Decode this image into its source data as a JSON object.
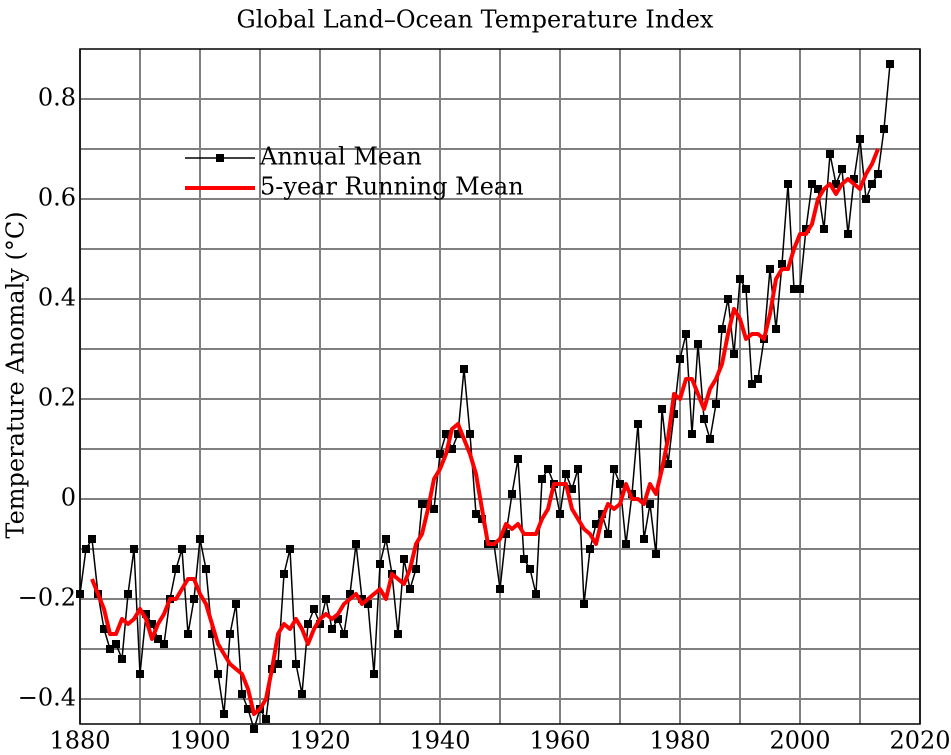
{
  "chart_data": {
    "type": "line",
    "title": "Global Land–Ocean Temperature Index",
    "ylabel": "Temperature Anomaly (°C)",
    "xlim": [
      1880,
      2020
    ],
    "xticks": [
      1880,
      1900,
      1920,
      1940,
      1960,
      1980,
      2000,
      2020
    ],
    "xminor": [
      1890,
      1910,
      1930,
      1950,
      1970,
      1990,
      2010
    ],
    "ylim": [
      -0.45,
      0.9
    ],
    "yticks": [
      {
        "value": -0.4,
        "label": "−0.4"
      },
      {
        "value": -0.2,
        "label": "−0.2"
      },
      0,
      0.2,
      0.4,
      0.6,
      0.8
    ],
    "yminor": [
      -0.3,
      -0.1,
      0.1,
      0.3,
      0.5,
      0.7
    ],
    "grid": true,
    "legend": "upper left",
    "series": [
      {
        "name": "Annual Mean",
        "color": "#000000",
        "marker": "square",
        "x": [
          1880,
          1881,
          1882,
          1883,
          1884,
          1885,
          1886,
          1887,
          1888,
          1889,
          1890,
          1891,
          1892,
          1893,
          1894,
          1895,
          1896,
          1897,
          1898,
          1899,
          1900,
          1901,
          1902,
          1903,
          1904,
          1905,
          1906,
          1907,
          1908,
          1909,
          1910,
          1911,
          1912,
          1913,
          1914,
          1915,
          1916,
          1917,
          1918,
          1919,
          1920,
          1921,
          1922,
          1923,
          1924,
          1925,
          1926,
          1927,
          1928,
          1929,
          1930,
          1931,
          1932,
          1933,
          1934,
          1935,
          1936,
          1937,
          1938,
          1939,
          1940,
          1941,
          1942,
          1943,
          1944,
          1945,
          1946,
          1947,
          1948,
          1949,
          1950,
          1951,
          1952,
          1953,
          1954,
          1955,
          1956,
          1957,
          1958,
          1959,
          1960,
          1961,
          1962,
          1963,
          1964,
          1965,
          1966,
          1967,
          1968,
          1969,
          1970,
          1971,
          1972,
          1973,
          1974,
          1975,
          1976,
          1977,
          1978,
          1979,
          1980,
          1981,
          1982,
          1983,
          1984,
          1985,
          1986,
          1987,
          1988,
          1989,
          1990,
          1991,
          1992,
          1993,
          1994,
          1995,
          1996,
          1997,
          1998,
          1999,
          2000,
          2001,
          2002,
          2003,
          2004,
          2005,
          2006,
          2007,
          2008,
          2009,
          2010,
          2011,
          2012,
          2013,
          2014,
          2015
        ],
        "values": [
          -0.19,
          -0.1,
          -0.08,
          -0.19,
          -0.26,
          -0.3,
          -0.29,
          -0.32,
          -0.19,
          -0.1,
          -0.35,
          -0.23,
          -0.25,
          -0.28,
          -0.29,
          -0.2,
          -0.14,
          -0.1,
          -0.27,
          -0.2,
          -0.08,
          -0.14,
          -0.27,
          -0.35,
          -0.43,
          -0.27,
          -0.21,
          -0.39,
          -0.42,
          -0.46,
          -0.42,
          -0.44,
          -0.34,
          -0.33,
          -0.15,
          -0.1,
          -0.33,
          -0.39,
          -0.25,
          -0.22,
          -0.25,
          -0.2,
          -0.26,
          -0.24,
          -0.27,
          -0.19,
          -0.09,
          -0.2,
          -0.21,
          -0.35,
          -0.13,
          -0.08,
          -0.15,
          -0.27,
          -0.12,
          -0.18,
          -0.14,
          -0.01,
          -0.01,
          -0.02,
          0.09,
          0.13,
          0.1,
          0.13,
          0.26,
          0.13,
          -0.03,
          -0.04,
          -0.09,
          -0.09,
          -0.18,
          -0.07,
          0.01,
          0.08,
          -0.12,
          -0.14,
          -0.19,
          0.04,
          0.06,
          0.03,
          -0.03,
          0.05,
          0.02,
          0.06,
          -0.21,
          -0.1,
          -0.05,
          -0.03,
          -0.07,
          0.06,
          0.03,
          -0.09,
          0.01,
          0.15,
          -0.08,
          -0.01,
          -0.11,
          0.18,
          0.07,
          0.17,
          0.28,
          0.33,
          0.13,
          0.31,
          0.16,
          0.12,
          0.19,
          0.34,
          0.4,
          0.29,
          0.44,
          0.42,
          0.23,
          0.24,
          0.32,
          0.46,
          0.34,
          0.47,
          0.63,
          0.42,
          0.42,
          0.54,
          0.63,
          0.62,
          0.54,
          0.69,
          0.63,
          0.66,
          0.53,
          0.64,
          0.72,
          0.6,
          0.63,
          0.65,
          0.74,
          0.87
        ]
      },
      {
        "name": "5-year Running Mean",
        "color": "#ff0000",
        "x": [
          1882,
          1883,
          1884,
          1885,
          1886,
          1887,
          1888,
          1889,
          1890,
          1891,
          1892,
          1893,
          1894,
          1895,
          1896,
          1897,
          1898,
          1899,
          1900,
          1901,
          1902,
          1903,
          1904,
          1905,
          1906,
          1907,
          1908,
          1909,
          1910,
          1911,
          1912,
          1913,
          1914,
          1915,
          1916,
          1917,
          1918,
          1919,
          1920,
          1921,
          1922,
          1923,
          1924,
          1925,
          1926,
          1927,
          1928,
          1929,
          1930,
          1931,
          1932,
          1933,
          1934,
          1935,
          1936,
          1937,
          1938,
          1939,
          1940,
          1941,
          1942,
          1943,
          1944,
          1945,
          1946,
          1947,
          1948,
          1949,
          1950,
          1951,
          1952,
          1953,
          1954,
          1955,
          1956,
          1957,
          1958,
          1959,
          1960,
          1961,
          1962,
          1963,
          1964,
          1965,
          1966,
          1967,
          1968,
          1969,
          1970,
          1971,
          1972,
          1973,
          1974,
          1975,
          1976,
          1977,
          1978,
          1979,
          1980,
          1981,
          1982,
          1983,
          1984,
          1985,
          1986,
          1987,
          1988,
          1989,
          1990,
          1991,
          1992,
          1993,
          1994,
          1995,
          1996,
          1997,
          1998,
          1999,
          2000,
          2001,
          2002,
          2003,
          2004,
          2005,
          2006,
          2007,
          2008,
          2009,
          2010,
          2011,
          2012,
          2013
        ],
        "values": [
          -0.16,
          -0.19,
          -0.22,
          -0.27,
          -0.27,
          -0.24,
          -0.25,
          -0.24,
          -0.22,
          -0.24,
          -0.28,
          -0.25,
          -0.23,
          -0.2,
          -0.2,
          -0.18,
          -0.16,
          -0.16,
          -0.19,
          -0.21,
          -0.25,
          -0.29,
          -0.31,
          -0.33,
          -0.34,
          -0.35,
          -0.38,
          -0.43,
          -0.42,
          -0.4,
          -0.34,
          -0.27,
          -0.25,
          -0.26,
          -0.24,
          -0.26,
          -0.29,
          -0.26,
          -0.24,
          -0.23,
          -0.24,
          -0.23,
          -0.21,
          -0.2,
          -0.19,
          -0.21,
          -0.2,
          -0.19,
          -0.18,
          -0.2,
          -0.15,
          -0.16,
          -0.17,
          -0.14,
          -0.09,
          -0.07,
          -0.02,
          0.04,
          0.06,
          0.09,
          0.14,
          0.15,
          0.12,
          0.09,
          0.05,
          -0.02,
          -0.09,
          -0.09,
          -0.08,
          -0.05,
          -0.06,
          -0.05,
          -0.07,
          -0.07,
          -0.07,
          -0.04,
          -0.02,
          0.03,
          0.03,
          0.03,
          -0.02,
          -0.04,
          -0.06,
          -0.07,
          -0.09,
          -0.04,
          -0.01,
          -0.02,
          -0.01,
          0.03,
          0.0,
          0.0,
          -0.01,
          0.03,
          0.01,
          0.06,
          0.12,
          0.21,
          0.2,
          0.24,
          0.24,
          0.21,
          0.18,
          0.22,
          0.24,
          0.27,
          0.33,
          0.38,
          0.36,
          0.32,
          0.33,
          0.33,
          0.32,
          0.37,
          0.44,
          0.46,
          0.46,
          0.5,
          0.53,
          0.53,
          0.55,
          0.6,
          0.62,
          0.63,
          0.61,
          0.63,
          0.64,
          0.63,
          0.62,
          0.65,
          0.67,
          0.7
        ]
      }
    ]
  }
}
